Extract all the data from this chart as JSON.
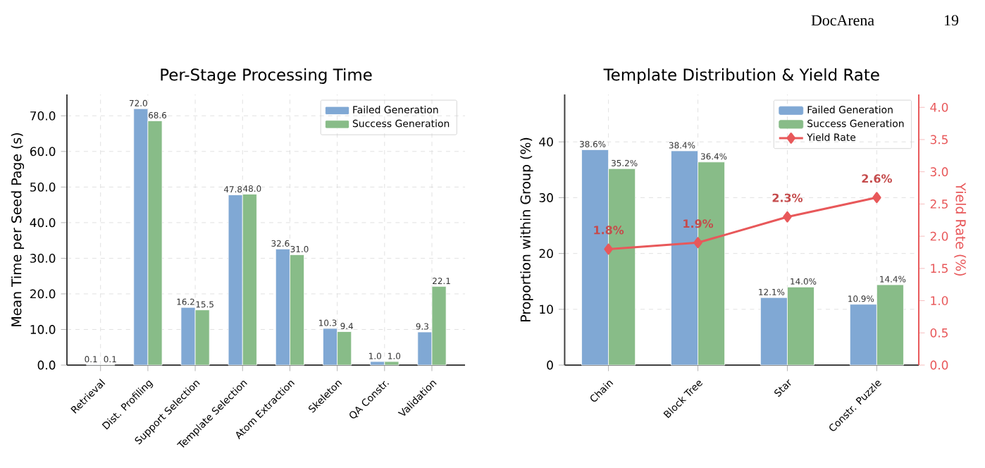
{
  "chart_data": [
    {
      "type": "bar",
      "title": "Per-Stage Processing Time",
      "ylabel": "Mean Time per Seed Page (s)",
      "categories": [
        "Retrieval",
        "Dist. Profiling",
        "Support Selection",
        "Template Selection",
        "Atom Extraction",
        "Skeleton",
        "QA Constr.",
        "Validation"
      ],
      "series": [
        {
          "name": "Failed Generation",
          "color": "#80a8d4",
          "values": [
            0.1,
            72.0,
            16.2,
            47.8,
            32.6,
            10.3,
            1.0,
            9.3
          ],
          "value_labels": [
            "0.1",
            "72.0",
            "16.2",
            "47.8",
            "32.6",
            "10.3",
            "1.0",
            "9.3"
          ]
        },
        {
          "name": "Success Generation",
          "color": "#88bc88",
          "values": [
            0.1,
            68.6,
            15.5,
            48.0,
            31.0,
            9.4,
            1.0,
            22.1
          ],
          "value_labels": [
            "0.1",
            "68.6",
            "15.5",
            "48.0",
            "31.0",
            "9.4",
            "1.0",
            "22.1"
          ]
        }
      ],
      "ylim": [
        0,
        76
      ],
      "yticks": [
        {
          "value": 0,
          "label": "0.0"
        },
        {
          "value": 10,
          "label": "10.0"
        },
        {
          "value": 20,
          "label": "20.0"
        },
        {
          "value": 30,
          "label": "30.0"
        },
        {
          "value": 40,
          "label": "40.0"
        },
        {
          "value": 50,
          "label": "50.0"
        },
        {
          "value": 60,
          "label": "60.0"
        },
        {
          "value": 70,
          "label": "70.0"
        }
      ],
      "grid": true,
      "legend": "top right"
    },
    {
      "type": "bar",
      "title": "Template Distribution & Yield Rate",
      "ylabel": "Proportion within Group (%)",
      "y2label": "Yield Rate (%)",
      "categories": [
        "Chain",
        "Block Tree",
        "Star",
        "Constr. Puzzle"
      ],
      "series": [
        {
          "name": "Failed Generation",
          "color": "#80a8d4",
          "values": [
            38.6,
            38.4,
            12.1,
            10.9
          ],
          "value_labels": [
            "38.6%",
            "38.4%",
            "12.1%",
            "10.9%"
          ]
        },
        {
          "name": "Success Generation",
          "color": "#88bc88",
          "values": [
            35.2,
            36.4,
            14.0,
            14.4
          ],
          "value_labels": [
            "35.2%",
            "36.4%",
            "14.0%",
            "14.4%"
          ]
        },
        {
          "name": "Yield Rate",
          "type": "line",
          "axis": "y2",
          "color": "#e8585a",
          "marker": "diamond",
          "values": [
            1.8,
            1.9,
            2.3,
            2.6
          ],
          "value_labels": [
            "1.8%",
            "1.9%",
            "2.3%",
            "2.6%"
          ]
        }
      ],
      "ylim": [
        0,
        48.5
      ],
      "yticks": [
        0,
        10,
        20,
        30,
        40
      ],
      "y2lim": [
        0,
        4.2
      ],
      "y2ticks": [
        {
          "value": 0,
          "label": "0.0"
        },
        {
          "value": 0.5,
          "label": "0.5"
        },
        {
          "value": 1,
          "label": "1.0"
        },
        {
          "value": 1.5,
          "label": "1.5"
        },
        {
          "value": 2,
          "label": "2.0"
        },
        {
          "value": 2.5,
          "label": "2.5"
        },
        {
          "value": 3,
          "label": "3.0"
        },
        {
          "value": 3.5,
          "label": "3.5"
        },
        {
          "value": 4,
          "label": "4.0"
        }
      ],
      "grid": true,
      "legend": "top right",
      "annotations": [
        "DocArena",
        "19"
      ]
    }
  ]
}
